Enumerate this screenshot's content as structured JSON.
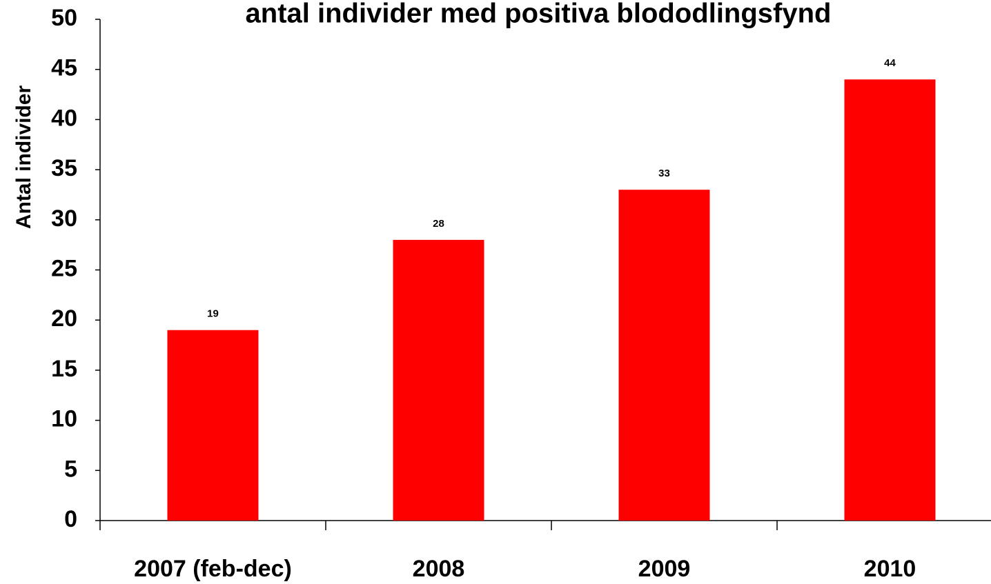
{
  "chart_data": {
    "type": "bar",
    "title": "antal individer med positiva blododlingsfynd",
    "y_label": "Antal individer",
    "categories": [
      "2007 (feb-dec)",
      "2008",
      "2009",
      "2010"
    ],
    "values": [
      19,
      28,
      33,
      44
    ],
    "color": "#ff0000",
    "ylim": [
      0,
      50
    ],
    "yticks": [
      0,
      5,
      10,
      15,
      20,
      25,
      30,
      35,
      40,
      45,
      50
    ],
    "grid": false
  }
}
